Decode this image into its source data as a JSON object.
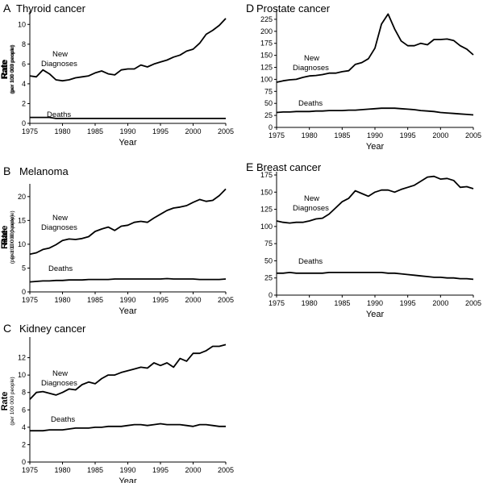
{
  "chart_data": [
    {
      "type": "line",
      "letter": "A",
      "title": "Thyroid cancer",
      "xlabel": "Year",
      "ylabel": "Rate",
      "ylabel_sub": "(per 100 000 people)",
      "xlim": [
        1975,
        2005
      ],
      "ylim": [
        0,
        11
      ],
      "x_ticks": [
        1975,
        1980,
        1985,
        1990,
        1995,
        2000,
        2005
      ],
      "y_ticks": [
        0,
        2,
        4,
        6,
        8,
        10
      ],
      "x": [
        1975,
        1976,
        1977,
        1978,
        1979,
        1980,
        1981,
        1982,
        1983,
        1984,
        1985,
        1986,
        1987,
        1988,
        1989,
        1990,
        1991,
        1992,
        1993,
        1994,
        1995,
        1996,
        1997,
        1998,
        1999,
        2000,
        2001,
        2002,
        2003,
        2004,
        2005
      ],
      "series": [
        {
          "name": "New Diagnoses",
          "values": [
            4.8,
            4.7,
            5.4,
            5.0,
            4.4,
            4.3,
            4.4,
            4.6,
            4.7,
            4.8,
            5.1,
            5.3,
            5.0,
            4.9,
            5.4,
            5.5,
            5.5,
            5.9,
            5.7,
            6.0,
            6.2,
            6.4,
            6.7,
            6.9,
            7.3,
            7.5,
            8.1,
            9.0,
            9.4,
            9.9,
            10.6
          ]
        },
        {
          "name": "Deaths",
          "values": [
            0.6,
            0.6,
            0.6,
            0.6,
            0.5,
            0.5,
            0.5,
            0.5,
            0.5,
            0.5,
            0.5,
            0.5,
            0.5,
            0.5,
            0.5,
            0.5,
            0.5,
            0.5,
            0.5,
            0.5,
            0.5,
            0.5,
            0.5,
            0.5,
            0.5,
            0.5,
            0.5,
            0.5,
            0.5,
            0.5,
            0.5
          ]
        }
      ]
    },
    {
      "type": "line",
      "letter": "B",
      "title": "Melanoma",
      "xlabel": "Year",
      "ylabel": "Rate",
      "ylabel_sub": "(per 100 000 people)",
      "xlim": [
        1975,
        2005
      ],
      "ylim": [
        0,
        22
      ],
      "x_ticks": [
        1975,
        1980,
        1985,
        1990,
        1995,
        2000,
        2005
      ],
      "y_ticks": [
        0,
        5,
        10,
        15,
        20
      ],
      "x": [
        1975,
        1976,
        1977,
        1978,
        1979,
        1980,
        1981,
        1982,
        1983,
        1984,
        1985,
        1986,
        1987,
        1988,
        1989,
        1990,
        1991,
        1992,
        1993,
        1994,
        1995,
        1996,
        1997,
        1998,
        1999,
        2000,
        2001,
        2002,
        2003,
        2004,
        2005
      ],
      "series": [
        {
          "name": "New Diagnoses",
          "values": [
            7.9,
            8.2,
            8.9,
            9.2,
            9.9,
            10.8,
            11.1,
            11.0,
            11.2,
            11.6,
            12.7,
            13.2,
            13.6,
            12.9,
            13.8,
            14.0,
            14.6,
            14.8,
            14.6,
            15.5,
            16.3,
            17.1,
            17.6,
            17.8,
            18.1,
            18.8,
            19.4,
            19.0,
            19.2,
            20.2,
            21.6
          ]
        },
        {
          "name": "Deaths",
          "values": [
            2.1,
            2.2,
            2.3,
            2.3,
            2.4,
            2.4,
            2.5,
            2.5,
            2.5,
            2.6,
            2.6,
            2.6,
            2.6,
            2.7,
            2.7,
            2.7,
            2.7,
            2.7,
            2.7,
            2.7,
            2.7,
            2.8,
            2.7,
            2.7,
            2.7,
            2.7,
            2.6,
            2.6,
            2.6,
            2.6,
            2.7
          ]
        }
      ]
    },
    {
      "type": "line",
      "letter": "C",
      "title": "Kidney cancer",
      "xlabel": "Year",
      "ylabel": "Rate",
      "ylabel_sub": "(per 100 000 people)",
      "xlim": [
        1975,
        2005
      ],
      "ylim": [
        0,
        14
      ],
      "x_ticks": [
        1975,
        1980,
        1985,
        1990,
        1995,
        2000,
        2005
      ],
      "y_ticks": [
        0,
        2,
        4,
        6,
        8,
        10,
        12
      ],
      "x": [
        1975,
        1976,
        1977,
        1978,
        1979,
        1980,
        1981,
        1982,
        1983,
        1984,
        1985,
        1986,
        1987,
        1988,
        1989,
        1990,
        1991,
        1992,
        1993,
        1994,
        1995,
        1996,
        1997,
        1998,
        1999,
        2000,
        2001,
        2002,
        2003,
        2004,
        2005
      ],
      "series": [
        {
          "name": "New Diagnoses",
          "values": [
            7.2,
            8.0,
            8.1,
            7.9,
            7.7,
            8.0,
            8.4,
            8.3,
            8.9,
            9.2,
            9.0,
            9.6,
            10.0,
            10.0,
            10.3,
            10.5,
            10.7,
            10.9,
            10.8,
            11.4,
            11.1,
            11.4,
            10.9,
            11.9,
            11.6,
            12.5,
            12.5,
            12.8,
            13.3,
            13.3,
            13.5
          ]
        },
        {
          "name": "Deaths",
          "values": [
            3.6,
            3.6,
            3.6,
            3.7,
            3.7,
            3.7,
            3.8,
            3.9,
            3.9,
            3.9,
            4.0,
            4.0,
            4.1,
            4.1,
            4.1,
            4.2,
            4.3,
            4.3,
            4.2,
            4.3,
            4.4,
            4.3,
            4.3,
            4.3,
            4.2,
            4.1,
            4.3,
            4.3,
            4.2,
            4.1,
            4.1
          ]
        }
      ]
    },
    {
      "type": "line",
      "letter": "D",
      "title": "Prostate cancer",
      "xlabel": "Year",
      "ylabel": "Rate",
      "ylabel_sub": "(per 100 000 people)",
      "xlim": [
        1975,
        2005
      ],
      "ylim": [
        0,
        240
      ],
      "x_ticks": [
        1975,
        1980,
        1985,
        1990,
        1995,
        2000,
        2005
      ],
      "y_ticks": [
        0,
        25,
        50,
        75,
        100,
        125,
        150,
        175,
        200,
        225
      ],
      "x": [
        1975,
        1976,
        1977,
        1978,
        1979,
        1980,
        1981,
        1982,
        1983,
        1984,
        1985,
        1986,
        1987,
        1988,
        1989,
        1990,
        1991,
        1992,
        1993,
        1994,
        1995,
        1996,
        1997,
        1998,
        1999,
        2000,
        2001,
        2002,
        2003,
        2004,
        2005
      ],
      "series": [
        {
          "name": "New Diagnoses",
          "values": [
            94,
            97,
            99,
            100,
            104,
            107,
            108,
            110,
            113,
            113,
            116,
            118,
            131,
            135,
            143,
            165,
            215,
            236,
            205,
            180,
            170,
            170,
            175,
            172,
            183,
            183,
            184,
            181,
            170,
            163,
            151
          ]
        },
        {
          "name": "Deaths",
          "values": [
            31,
            32,
            32,
            33,
            33,
            33,
            34,
            34,
            35,
            35,
            35,
            36,
            36,
            37,
            38,
            39,
            40,
            40,
            40,
            39,
            38,
            37,
            35,
            34,
            33,
            31,
            30,
            29,
            28,
            27,
            26
          ]
        }
      ]
    },
    {
      "type": "line",
      "letter": "E",
      "title": "Breast cancer",
      "xlabel": "Year",
      "ylabel": "Rate",
      "ylabel_sub": "(per 100 000 people)",
      "xlim": [
        1975,
        2005
      ],
      "ylim": [
        0,
        175
      ],
      "x_ticks": [
        1975,
        1980,
        1985,
        1990,
        1995,
        2000,
        2005
      ],
      "y_ticks": [
        0,
        25,
        50,
        75,
        100,
        125,
        150,
        175
      ],
      "x": [
        1975,
        1976,
        1977,
        1978,
        1979,
        1980,
        1981,
        1982,
        1983,
        1984,
        1985,
        1986,
        1987,
        1988,
        1989,
        1990,
        1991,
        1992,
        1993,
        1994,
        1995,
        1996,
        1997,
        1998,
        1999,
        2000,
        2001,
        2002,
        2003,
        2004,
        2005
      ],
      "series": [
        {
          "name": "New Diagnoses",
          "values": [
            108,
            106,
            105,
            106,
            106,
            108,
            111,
            112,
            118,
            127,
            136,
            141,
            152,
            148,
            144,
            150,
            153,
            153,
            150,
            154,
            157,
            160,
            166,
            172,
            173,
            169,
            170,
            167,
            157,
            158,
            155
          ]
        },
        {
          "name": "Deaths",
          "values": [
            32,
            32,
            33,
            32,
            32,
            32,
            32,
            32,
            33,
            33,
            33,
            33,
            33,
            33,
            33,
            33,
            33,
            32,
            32,
            31,
            30,
            29,
            28,
            27,
            26,
            26,
            25,
            25,
            24,
            24,
            23
          ]
        }
      ]
    }
  ]
}
